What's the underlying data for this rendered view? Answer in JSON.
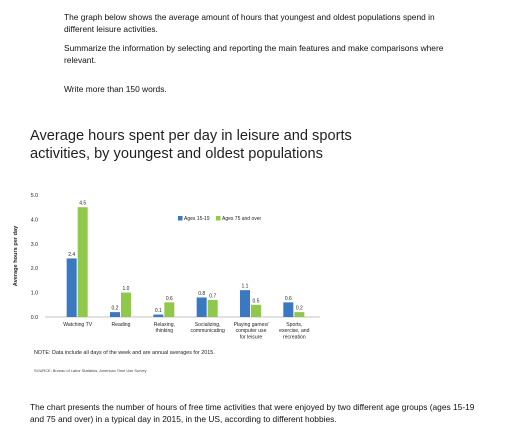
{
  "task": {
    "paragraph_1": "The graph below shows the average amount of hours that youngest and oldest populations spend in different leisure activities.",
    "paragraph_2": "Summarize the information by selecting and reporting the main features and make comparisons where relevant.",
    "paragraph_3": "Write more than 150 words."
  },
  "chart_data": {
    "type": "bar",
    "title": "Average hours spent per day in leisure and sports activities, by youngest and oldest populations",
    "xlabel": "",
    "ylabel": "Average hours per day",
    "ylim": [
      0,
      5
    ],
    "yticks": [
      "0.0",
      "1.0",
      "2.0",
      "3.0",
      "4.0",
      "5.0"
    ],
    "grid": false,
    "legend_position": "top-right",
    "categories": [
      [
        "Watching TV"
      ],
      [
        "Reading"
      ],
      [
        "Relaxing,",
        "thinking"
      ],
      [
        "Socializing,",
        "communicating"
      ],
      [
        "Playing games/",
        "computer use",
        "for leisure"
      ],
      [
        "Sports,",
        "exercise, and",
        "recreation"
      ]
    ],
    "series": [
      {
        "name": "Ages 15-19",
        "color": "#3a78c2",
        "values": [
          2.4,
          0.2,
          0.1,
          0.8,
          1.1,
          0.6
        ]
      },
      {
        "name": "Ages 75 and over",
        "color": "#8fc84a",
        "values": [
          4.5,
          1.0,
          0.6,
          0.7,
          0.5,
          0.2
        ]
      }
    ],
    "value_labels": [
      [
        "2.4",
        "0.2",
        "0.1",
        "0.8",
        "1.1",
        "0.6"
      ],
      [
        "4.5",
        "1.0",
        "0.6",
        "0.7",
        "0.5",
        "0.2"
      ]
    ],
    "note": "NOTE: Data include all days of the week and are annual averages for 2015.",
    "source": "SOURCE: Bureau of Labor Statistics, American Time Use Survey"
  },
  "summary": "The chart presents the number of hours of free time activities that were enjoyed by two different age groups (ages 15-19 and 75 and over) in a typical day in 2015, in the US, according to different hobbies."
}
